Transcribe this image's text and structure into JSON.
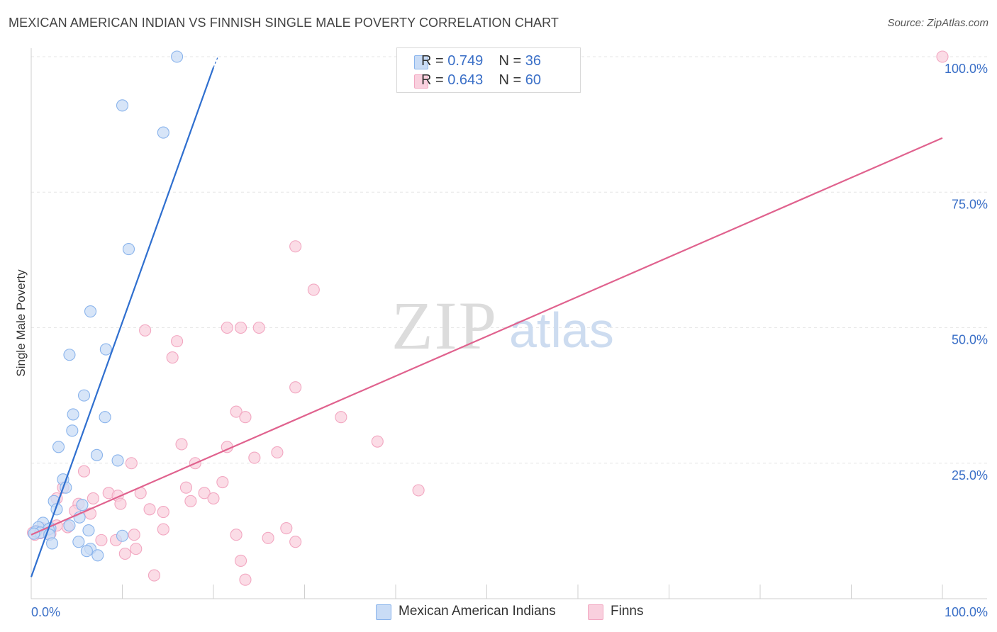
{
  "title": "MEXICAN AMERICAN INDIAN VS FINNISH SINGLE MALE POVERTY CORRELATION CHART",
  "source": "Source: ZipAtlas.com",
  "watermark": {
    "zip": "ZIP",
    "atlas": "atlas"
  },
  "legend": {
    "r_label": "R =",
    "n_label": "N =",
    "series": [
      {
        "r": "0.749",
        "n": "36"
      },
      {
        "r": "0.643",
        "n": "60"
      }
    ]
  },
  "chart_data": {
    "type": "scatter",
    "title": "MEXICAN AMERICAN INDIAN VS FINNISH SINGLE MALE POVERTY CORRELATION CHART",
    "xlabel": "",
    "ylabel": "Single Male Poverty",
    "xlim": [
      0,
      100
    ],
    "ylim": [
      0,
      100
    ],
    "x_tick_labels": [
      "0.0%",
      "100.0%"
    ],
    "y_ticks": [
      {
        "value": 25,
        "label": "25.0%"
      },
      {
        "value": 50,
        "label": "50.0%"
      },
      {
        "value": 75,
        "label": "75.0%"
      },
      {
        "value": 100,
        "label": "100.0%"
      }
    ],
    "grid": true,
    "legend_position": "top-center",
    "series": [
      {
        "name": "Mexican American Indians",
        "color": "#8ab4ec",
        "fill": "#c9dcf6",
        "line_color": "#2f6fcf",
        "trend": {
          "x0": 0,
          "y0": 4,
          "x1": 20,
          "y1": 98,
          "x1_dashed": 20.5,
          "y1_dashed": 100
        },
        "points": [
          [
            16,
            100
          ],
          [
            10,
            91
          ],
          [
            14.5,
            86
          ],
          [
            10.7,
            64.5
          ],
          [
            6.5,
            53
          ],
          [
            4.2,
            45
          ],
          [
            8.2,
            46
          ],
          [
            5.8,
            37.5
          ],
          [
            4.6,
            34
          ],
          [
            8.1,
            33.5
          ],
          [
            4.5,
            31
          ],
          [
            3,
            28
          ],
          [
            7.2,
            26.5
          ],
          [
            9.5,
            25.5
          ],
          [
            3.5,
            22
          ],
          [
            3.8,
            20.5
          ],
          [
            2.5,
            18
          ],
          [
            5.6,
            17.3
          ],
          [
            2.8,
            16.5
          ],
          [
            5.3,
            15
          ],
          [
            1.3,
            14
          ],
          [
            4.2,
            13.5
          ],
          [
            0.8,
            13.2
          ],
          [
            2.1,
            13
          ],
          [
            1.9,
            12.8
          ],
          [
            6.3,
            12.6
          ],
          [
            0.5,
            12.4
          ],
          [
            1.0,
            12.2
          ],
          [
            0.3,
            12.0
          ],
          [
            2.0,
            11.8
          ],
          [
            10.0,
            11.6
          ],
          [
            5.2,
            10.5
          ],
          [
            2.3,
            10.2
          ],
          [
            6.5,
            9.2
          ],
          [
            6.1,
            8.8
          ],
          [
            7.3,
            8.0
          ]
        ]
      },
      {
        "name": "Finns",
        "color": "#f2a7c1",
        "fill": "#f9d0de",
        "line_color": "#e0628e",
        "trend": {
          "x0": 0,
          "y0": 11.8,
          "x1": 100,
          "y1": 85
        },
        "points": [
          [
            100,
            100
          ],
          [
            29,
            65
          ],
          [
            31,
            57
          ],
          [
            21.5,
            50
          ],
          [
            25,
            50
          ],
          [
            23,
            50
          ],
          [
            12.5,
            49.5
          ],
          [
            16,
            47.5
          ],
          [
            15.5,
            44.5
          ],
          [
            29,
            39
          ],
          [
            22.5,
            34.5
          ],
          [
            23.5,
            33.5
          ],
          [
            34,
            33.5
          ],
          [
            38,
            29
          ],
          [
            16.5,
            28.5
          ],
          [
            21.5,
            28
          ],
          [
            24.5,
            26
          ],
          [
            27,
            27
          ],
          [
            11,
            25
          ],
          [
            18,
            25
          ],
          [
            5.8,
            23.5
          ],
          [
            3.5,
            20.5
          ],
          [
            17,
            20.5
          ],
          [
            21,
            21.5
          ],
          [
            42.5,
            20
          ],
          [
            12,
            19.5
          ],
          [
            19,
            19.5
          ],
          [
            8.5,
            19.5
          ],
          [
            20,
            18.5
          ],
          [
            2.8,
            18.5
          ],
          [
            9.5,
            19
          ],
          [
            6.8,
            18.5
          ],
          [
            17.5,
            18
          ],
          [
            5.2,
            17.5
          ],
          [
            13,
            16.5
          ],
          [
            4.8,
            16.2
          ],
          [
            9.8,
            17.5
          ],
          [
            14.5,
            16
          ],
          [
            6.5,
            15.7
          ],
          [
            4.0,
            13.2
          ],
          [
            1.2,
            13
          ],
          [
            14.5,
            12.8
          ],
          [
            0.6,
            12.5
          ],
          [
            0.2,
            12.2
          ],
          [
            2.1,
            12
          ],
          [
            0.4,
            11.8
          ],
          [
            2.8,
            13.5
          ],
          [
            28,
            13
          ],
          [
            11.3,
            11.8
          ],
          [
            22.5,
            11.8
          ],
          [
            26,
            11.2
          ],
          [
            9.3,
            10.8
          ],
          [
            29,
            10.5
          ],
          [
            7.7,
            10.8
          ],
          [
            11.5,
            9.2
          ],
          [
            10.3,
            8.3
          ],
          [
            23,
            7
          ],
          [
            13.5,
            4.3
          ],
          [
            23.5,
            3.5
          ],
          [
            1,
            12.1
          ]
        ]
      }
    ]
  }
}
